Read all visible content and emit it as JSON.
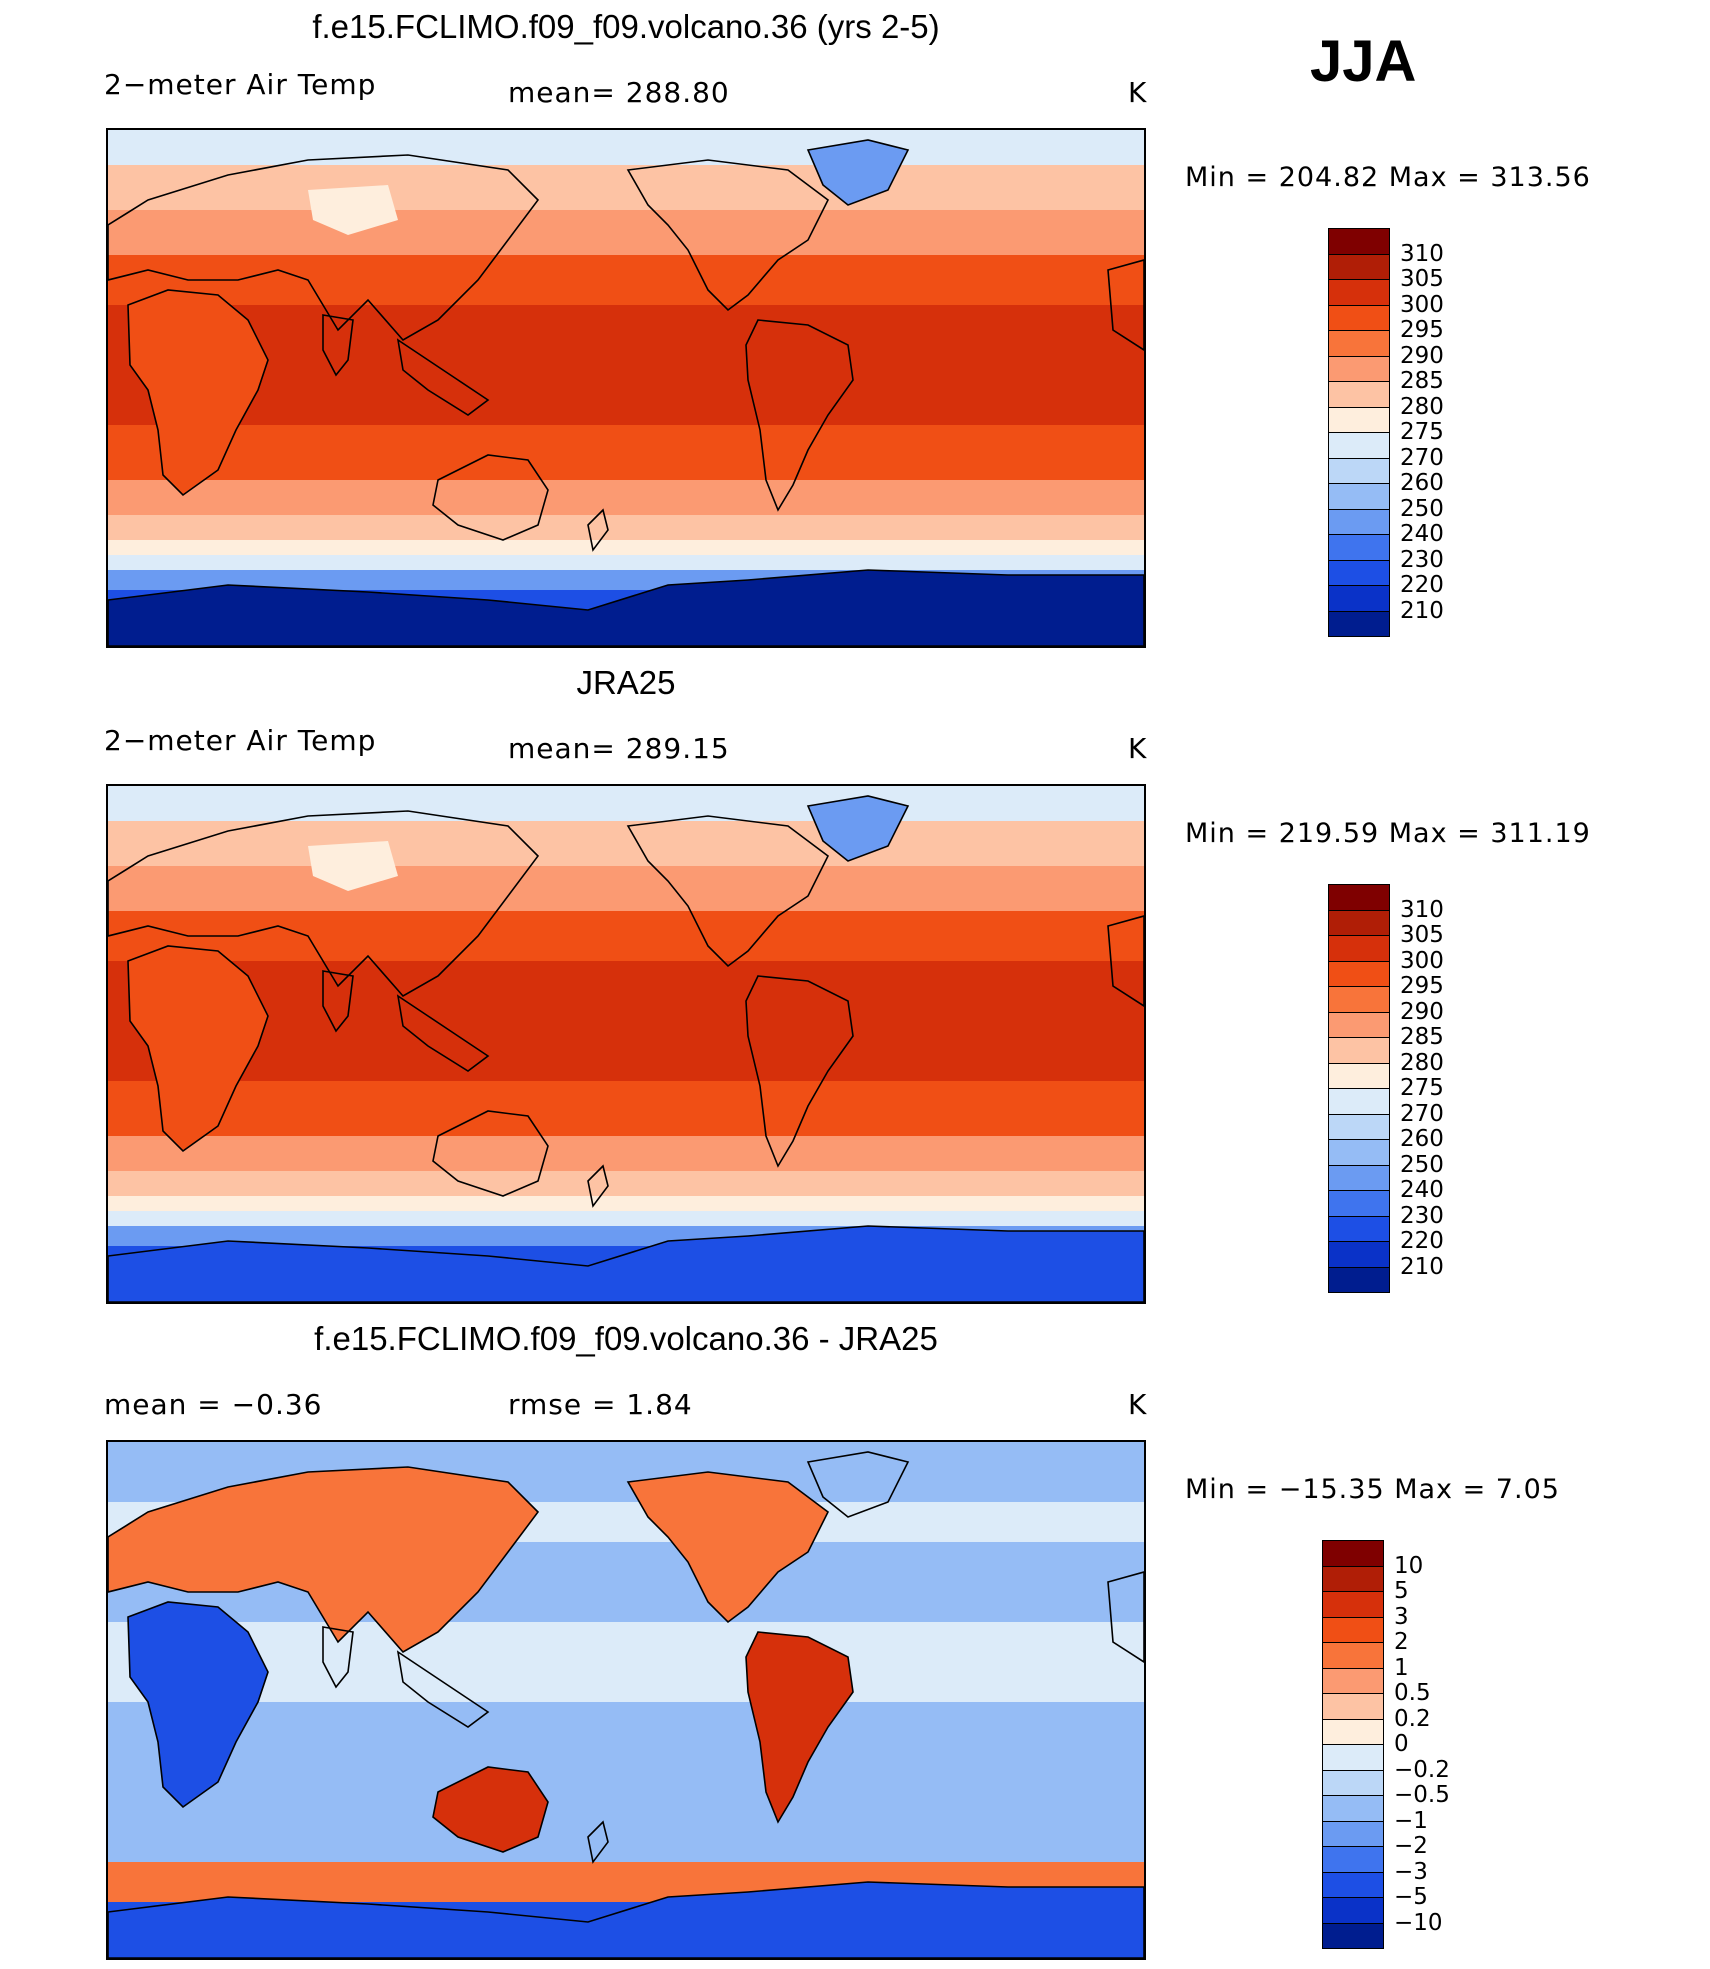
{
  "season": "JJA",
  "panels": [
    {
      "title": "f.e15.FCLIMO.f09_f09.volcano.36 (yrs 2-5)",
      "left_label": "2−meter Air Temp",
      "center_label": "mean=  288.80",
      "units": "K",
      "minmax": "Min  =  204.82  Max  =  313.56",
      "colorbar": {
        "labels": [
          "310",
          "305",
          "300",
          "295",
          "290",
          "285",
          "280",
          "275",
          "270",
          "260",
          "250",
          "240",
          "230",
          "220",
          "210"
        ],
        "colors": [
          "#7f0000",
          "#b01e06",
          "#d6300b",
          "#f04f15",
          "#f8743a",
          "#fb9a72",
          "#fdc3a4",
          "#feeedd",
          "#dcebf9",
          "#bcd7f7",
          "#95bcf5",
          "#6b9bf2",
          "#3f74ee",
          "#1d4fe5",
          "#0a32c8",
          "#001d8f"
        ]
      }
    },
    {
      "title": "JRA25",
      "left_label": "2−meter Air Temp",
      "center_label": "mean=  289.15",
      "units": "K",
      "minmax": "Min  =  219.59  Max  =  311.19",
      "colorbar": {
        "labels": [
          "310",
          "305",
          "300",
          "295",
          "290",
          "285",
          "280",
          "275",
          "270",
          "260",
          "250",
          "240",
          "230",
          "220",
          "210"
        ],
        "colors": [
          "#7f0000",
          "#b01e06",
          "#d6300b",
          "#f04f15",
          "#f8743a",
          "#fb9a72",
          "#fdc3a4",
          "#feeedd",
          "#dcebf9",
          "#bcd7f7",
          "#95bcf5",
          "#6b9bf2",
          "#3f74ee",
          "#1d4fe5",
          "#0a32c8",
          "#001d8f"
        ]
      }
    },
    {
      "title": "f.e15.FCLIMO.f09_f09.volcano.36 - JRA25",
      "left_label": "mean  =     −0.36",
      "center_label": "rmse  =      1.84",
      "units": "K",
      "minmax": "Min  =  −15.35  Max  =       7.05",
      "colorbar": {
        "labels": [
          "10",
          "5",
          "3",
          "2",
          "1",
          "0.5",
          "0.2",
          "0",
          "−0.2",
          "−0.5",
          "−1",
          "−2",
          "−3",
          "−5",
          "−10"
        ],
        "colors": [
          "#7f0000",
          "#b01e06",
          "#d6300b",
          "#f04f15",
          "#f8743a",
          "#fb9a72",
          "#fdc3a4",
          "#feeedd",
          "#dcebf9",
          "#bcd7f7",
          "#95bcf5",
          "#6b9bf2",
          "#3f74ee",
          "#1d4fe5",
          "#0a32c8",
          "#001d8f"
        ]
      }
    }
  ],
  "map_fill": {
    "ocean_warm": "#f04f15",
    "ocean_tropic": "#d6300b",
    "mid": "#fb9a72",
    "cool": "#fdc3a4",
    "pale": "#feeedd",
    "icy": "#dcebf9",
    "cold1": "#6b9bf2",
    "cold2": "#1d4fe5",
    "cold3": "#001d8f",
    "diff_pos": "#f8743a",
    "diff_neg": "#95bcf5",
    "diff_pale": "#dcebf9",
    "diff_strong_pos": "#d6300b",
    "diff_strong_neg": "#1d4fe5"
  }
}
